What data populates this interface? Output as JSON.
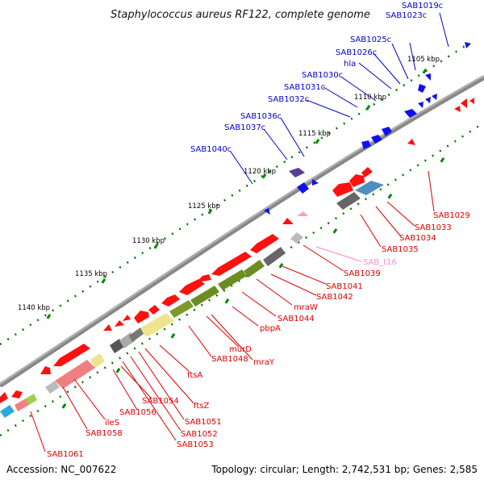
{
  "title": "Staphylococcus aureus RF122, complete genome",
  "footer": {
    "accession": "Accession: NC_007622",
    "info": "Topology: circular; Length: 2,742,531 bp; Genes: 2,585"
  },
  "colors": {
    "backbone": "#888888",
    "forward_label": "#0000cc",
    "reverse_label": "#dd0000",
    "rna_label": "#ff88cc",
    "tick": "#008800",
    "gene_forward": "#1010ee",
    "gene_reverse": "#ff1010"
  },
  "kbp_ticks": [
    "1105 kbp",
    "1110 kbp",
    "1115 kbp",
    "1120 kbp",
    "1125 kbp",
    "1130 kbp",
    "1135 kbp",
    "1140 kbp"
  ],
  "forward_labels": [
    "SAB1019c",
    "SAB1023c",
    "SAB1025c",
    "SAB1026c",
    "hla",
    "SAB1030c",
    "SAB1031c",
    "SAB1032c",
    "SAB1036c",
    "SAB1037c",
    "SAB1040c"
  ],
  "reverse_labels": [
    "SAB1029",
    "SAB1033",
    "SAB1034",
    "SAB1035",
    "SAB_t16",
    "SAB1039",
    "SAB1041",
    "SAB1042",
    "mraW",
    "SAB1044",
    "pbpA",
    "murD",
    "mraY",
    "SAB1048",
    "ftsA",
    "ftsZ",
    "SAB1051",
    "SAB1052",
    "SAB1053",
    "SAB1054",
    "SAB1056",
    "ileS",
    "SAB1058",
    "SAB1061"
  ]
}
